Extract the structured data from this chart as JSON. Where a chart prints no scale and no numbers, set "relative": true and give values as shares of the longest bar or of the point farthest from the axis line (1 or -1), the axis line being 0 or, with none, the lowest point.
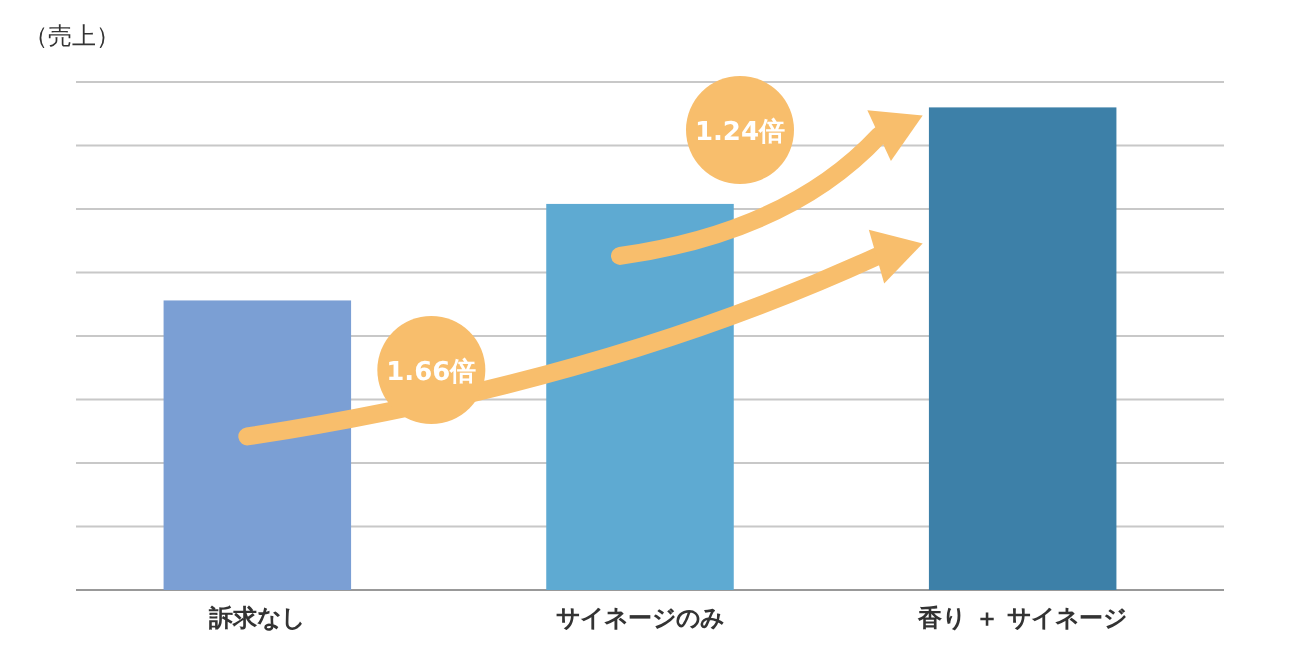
{
  "chart_data": {
    "type": "bar",
    "relative": true,
    "ylabel": "（売上）",
    "categories": [
      "訴求なし",
      "サイネージのみ",
      "香り ＋ サイネージ"
    ],
    "values": [
      0.6,
      0.8,
      1
    ],
    "colors": [
      "#7b9fd4",
      "#5eaad2",
      "#3d80a8"
    ],
    "grid": "y",
    "annotations": [
      "1.66倍",
      "1.24倍"
    ]
  }
}
